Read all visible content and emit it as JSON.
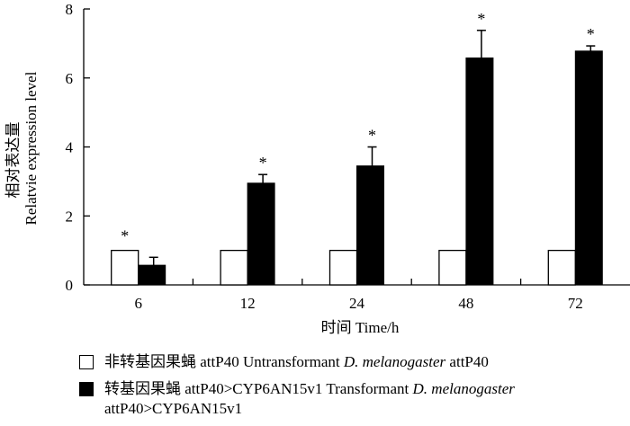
{
  "chart_data": {
    "type": "bar",
    "xlabel": "时间 Time/h",
    "ylabel_cn": "相对表达量",
    "ylabel_en": "Relatvie expression level",
    "ylim": [
      0,
      8
    ],
    "yticks": [
      0,
      2,
      4,
      6,
      8
    ],
    "categories": [
      "6",
      "12",
      "24",
      "48",
      "72"
    ],
    "series": [
      {
        "name": "非转基因果蝇 attP40 Untransformant D. melanogaster attP40",
        "fill": "white",
        "values": [
          1,
          1,
          1,
          1,
          1
        ]
      },
      {
        "name": "转基因果蝇 attP40>CYP6AN15v1 Transformant D. melanogaster attP40>CYP6AN15v1",
        "fill": "black",
        "values": [
          0.57,
          2.95,
          3.45,
          6.58,
          6.78
        ],
        "error": [
          0.23,
          0.25,
          0.55,
          0.8,
          0.15
        ]
      }
    ],
    "significance": [
      "*",
      "*",
      "*",
      "*",
      "*"
    ],
    "significance_on_series": [
      0,
      1,
      1,
      1,
      1
    ]
  },
  "legend": {
    "item1": {
      "cn": "非转基因果蝇",
      "pre": "attP40 Untransformant ",
      "italic": "D. melanogaster",
      "post": " attP40"
    },
    "item2": {
      "cn": "转基因果蝇",
      "pre": "attP40>CYP6AN15v1 Transformant ",
      "italic": "D. melanogaster",
      "line2": "attP40>CYP6AN15v1"
    }
  }
}
